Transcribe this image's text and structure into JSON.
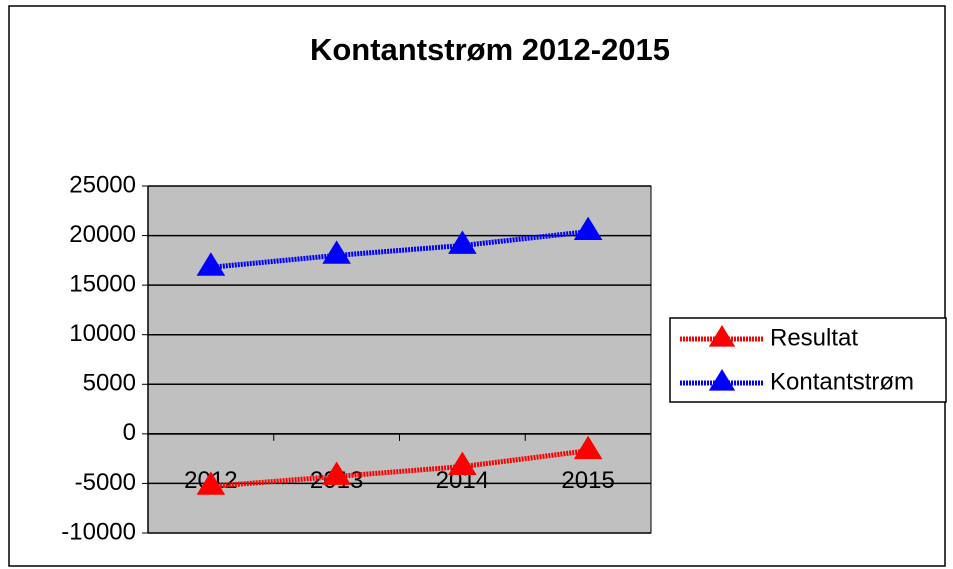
{
  "chart_data": {
    "type": "line",
    "title": "Kontantstrøm 2012-2015",
    "categories": [
      "2012",
      "2013",
      "2014",
      "2015"
    ],
    "series": [
      {
        "name": "Resultat",
        "color": "#ff0000",
        "values": [
          -5300,
          -4300,
          -3300,
          -1700
        ]
      },
      {
        "name": "Kontantstrøm",
        "color": "#0000ff",
        "values": [
          16800,
          18000,
          19000,
          20400
        ]
      }
    ],
    "ylim": [
      -10000,
      25000
    ],
    "yticks": [
      -10000,
      -5000,
      0,
      5000,
      10000,
      15000,
      20000,
      25000
    ],
    "grid": true,
    "legend": "right",
    "plot_background": "#c0c0c0"
  }
}
